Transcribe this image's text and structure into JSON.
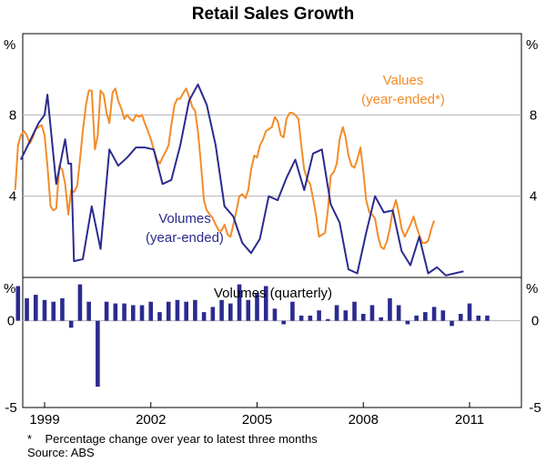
{
  "chart_data": {
    "title": "Retail Sales Growth",
    "footnote_marker": "*",
    "footnote": "Percentage change over year to latest three months",
    "source": "Source: ABS",
    "x_ticks": [
      "1999",
      "2002",
      "2005",
      "2008",
      "2011"
    ],
    "top_panel": {
      "type": "line",
      "unit": "%",
      "ylim": [
        0,
        12
      ],
      "y_ticks": [
        4,
        8
      ],
      "y_tick_labels": [
        "4",
        "8"
      ],
      "label_values": "Values",
      "label_values_sub": "(year-ended*)",
      "label_volumes": "Volumes",
      "label_volumes_sub": "(year-ended)",
      "series": [
        {
          "name": "Values",
          "color": "#F28C28",
          "points": [
            [
              1998.17,
              4.3
            ],
            [
              1998.25,
              6.5
            ],
            [
              1998.33,
              7.0
            ],
            [
              1998.42,
              7.2
            ],
            [
              1998.5,
              7.0
            ],
            [
              1998.58,
              6.6
            ],
            [
              1998.67,
              6.9
            ],
            [
              1998.75,
              7.3
            ],
            [
              1998.83,
              7.4
            ],
            [
              1998.92,
              7.5
            ],
            [
              1999.0,
              7.0
            ],
            [
              1999.08,
              5.5
            ],
            [
              1999.17,
              3.5
            ],
            [
              1999.25,
              3.3
            ],
            [
              1999.33,
              3.4
            ],
            [
              1999.42,
              5.5
            ],
            [
              1999.5,
              5.3
            ],
            [
              1999.58,
              4.6
            ],
            [
              1999.67,
              3.1
            ],
            [
              1999.75,
              4.3
            ],
            [
              1999.83,
              4.2
            ],
            [
              1999.92,
              4.5
            ],
            [
              2000.0,
              5.8
            ],
            [
              2000.08,
              7.2
            ],
            [
              2000.17,
              8.5
            ],
            [
              2000.25,
              9.2
            ],
            [
              2000.33,
              9.2
            ],
            [
              2000.42,
              6.3
            ],
            [
              2000.5,
              7.0
            ],
            [
              2000.58,
              9.2
            ],
            [
              2000.67,
              9.0
            ],
            [
              2000.75,
              8.1
            ],
            [
              2000.83,
              7.6
            ],
            [
              2000.92,
              9.1
            ],
            [
              2001.0,
              9.3
            ],
            [
              2001.08,
              8.7
            ],
            [
              2001.17,
              8.3
            ],
            [
              2001.25,
              7.8
            ],
            [
              2001.33,
              8.0
            ],
            [
              2001.42,
              7.8
            ],
            [
              2001.5,
              7.7
            ],
            [
              2001.58,
              8.0
            ],
            [
              2001.67,
              7.9
            ],
            [
              2001.75,
              8.0
            ],
            [
              2001.83,
              7.6
            ],
            [
              2001.92,
              7.2
            ],
            [
              2002.0,
              6.8
            ],
            [
              2002.08,
              6.3
            ],
            [
              2002.17,
              5.8
            ],
            [
              2002.25,
              5.6
            ],
            [
              2002.33,
              5.9
            ],
            [
              2002.42,
              6.2
            ],
            [
              2002.5,
              6.5
            ],
            [
              2002.58,
              7.5
            ],
            [
              2002.67,
              8.5
            ],
            [
              2002.75,
              8.8
            ],
            [
              2002.83,
              8.8
            ],
            [
              2002.92,
              9.1
            ],
            [
              2003.0,
              9.3
            ],
            [
              2003.08,
              8.9
            ],
            [
              2003.17,
              8.4
            ],
            [
              2003.25,
              8.2
            ],
            [
              2003.33,
              7.2
            ],
            [
              2003.42,
              5.5
            ],
            [
              2003.5,
              3.8
            ],
            [
              2003.58,
              3.3
            ],
            [
              2003.67,
              3.1
            ],
            [
              2003.75,
              2.9
            ],
            [
              2003.83,
              2.6
            ],
            [
              2003.92,
              2.3
            ],
            [
              2004.0,
              2.3
            ],
            [
              2004.08,
              2.6
            ],
            [
              2004.17,
              2.1
            ],
            [
              2004.25,
              2.0
            ],
            [
              2004.33,
              2.6
            ],
            [
              2004.42,
              3.3
            ],
            [
              2004.5,
              4.0
            ],
            [
              2004.58,
              4.1
            ],
            [
              2004.67,
              3.9
            ],
            [
              2004.75,
              4.3
            ],
            [
              2004.83,
              5.3
            ],
            [
              2004.92,
              6.0
            ],
            [
              2005.0,
              5.9
            ],
            [
              2005.08,
              6.5
            ],
            [
              2005.17,
              6.8
            ],
            [
              2005.25,
              7.2
            ],
            [
              2005.33,
              7.3
            ],
            [
              2005.42,
              7.4
            ],
            [
              2005.5,
              7.9
            ],
            [
              2005.58,
              7.7
            ],
            [
              2005.67,
              7.0
            ],
            [
              2005.75,
              6.9
            ],
            [
              2005.83,
              7.8
            ],
            [
              2005.92,
              8.1
            ],
            [
              2006.0,
              8.1
            ],
            [
              2006.08,
              8.0
            ],
            [
              2006.17,
              7.8
            ],
            [
              2006.25,
              6.5
            ],
            [
              2006.33,
              5.3
            ],
            [
              2006.42,
              4.8
            ],
            [
              2006.5,
              4.6
            ],
            [
              2006.58,
              3.9
            ],
            [
              2006.67,
              3.0
            ],
            [
              2006.75,
              2.0
            ],
            [
              2006.83,
              2.1
            ],
            [
              2006.92,
              2.2
            ],
            [
              2007.0,
              3.3
            ],
            [
              2007.08,
              5.0
            ],
            [
              2007.17,
              5.2
            ],
            [
              2007.25,
              5.6
            ],
            [
              2007.33,
              6.8
            ],
            [
              2007.42,
              7.4
            ],
            [
              2007.5,
              6.9
            ],
            [
              2007.58,
              6.0
            ],
            [
              2007.67,
              5.5
            ],
            [
              2007.75,
              5.4
            ],
            [
              2007.83,
              5.8
            ],
            [
              2007.92,
              6.4
            ],
            [
              2008.0,
              5.2
            ],
            [
              2008.08,
              3.8
            ],
            [
              2008.17,
              3.2
            ],
            [
              2008.25,
              3.1
            ],
            [
              2008.33,
              2.9
            ],
            [
              2008.42,
              2.0
            ],
            [
              2008.5,
              1.5
            ],
            [
              2008.58,
              1.4
            ],
            [
              2008.67,
              1.8
            ],
            [
              2008.75,
              2.4
            ],
            [
              2008.83,
              3.3
            ],
            [
              2008.92,
              3.8
            ],
            [
              2009.0,
              3.2
            ],
            [
              2009.08,
              2.4
            ],
            [
              2009.17,
              2.0
            ],
            [
              2009.25,
              2.3
            ],
            [
              2009.33,
              2.6
            ],
            [
              2009.42,
              3.0
            ],
            [
              2009.5,
              2.5
            ],
            [
              2009.58,
              2.1
            ],
            [
              2009.67,
              1.7
            ],
            [
              2009.75,
              1.7
            ],
            [
              2009.83,
              1.8
            ],
            [
              2009.92,
              2.4
            ],
            [
              2010.0,
              2.8
            ]
          ]
        },
        {
          "name": "Volumes",
          "color": "#2B2B8F",
          "points": [
            [
              1998.33,
              5.8
            ],
            [
              1998.58,
              6.7
            ],
            [
              1998.83,
              7.6
            ],
            [
              1999.0,
              8.0
            ],
            [
              1999.08,
              9.0
            ],
            [
              1999.33,
              4.6
            ],
            [
              1999.58,
              6.8
            ],
            [
              1999.67,
              5.6
            ],
            [
              1999.75,
              5.6
            ],
            [
              1999.83,
              0.8
            ],
            [
              2000.08,
              0.9
            ],
            [
              2000.33,
              3.5
            ],
            [
              2000.58,
              1.4
            ],
            [
              2000.83,
              6.3
            ],
            [
              2001.08,
              5.5
            ],
            [
              2001.33,
              5.9
            ],
            [
              2001.58,
              6.4
            ],
            [
              2001.83,
              6.4
            ],
            [
              2002.08,
              6.3
            ],
            [
              2002.33,
              4.6
            ],
            [
              2002.58,
              4.8
            ],
            [
              2002.83,
              6.5
            ],
            [
              2003.08,
              8.7
            ],
            [
              2003.33,
              9.5
            ],
            [
              2003.58,
              8.5
            ],
            [
              2003.83,
              6.5
            ],
            [
              2004.08,
              3.5
            ],
            [
              2004.33,
              3.0
            ],
            [
              2004.58,
              1.7
            ],
            [
              2004.83,
              1.2
            ],
            [
              2005.08,
              1.9
            ],
            [
              2005.33,
              4.0
            ],
            [
              2005.58,
              3.8
            ],
            [
              2005.83,
              4.9
            ],
            [
              2006.08,
              5.8
            ],
            [
              2006.33,
              4.3
            ],
            [
              2006.58,
              6.1
            ],
            [
              2006.83,
              6.3
            ],
            [
              2007.08,
              3.6
            ],
            [
              2007.33,
              2.7
            ],
            [
              2007.58,
              0.4
            ],
            [
              2007.83,
              0.2
            ],
            [
              2008.08,
              2.2
            ],
            [
              2008.33,
              4.0
            ],
            [
              2008.58,
              3.2
            ],
            [
              2008.83,
              3.3
            ],
            [
              2009.08,
              1.3
            ],
            [
              2009.33,
              0.6
            ],
            [
              2009.58,
              2.0
            ],
            [
              2009.83,
              0.2
            ],
            [
              2010.08,
              0.5
            ],
            [
              2010.33,
              0.1
            ],
            [
              2010.58,
              0.2
            ],
            [
              2010.83,
              0.3
            ]
          ]
        }
      ]
    },
    "bottom_panel": {
      "type": "bar",
      "unit": "%",
      "title": "Volumes (quarterly)",
      "ylim": [
        -5,
        2.5
      ],
      "y_ticks": [
        -5,
        0
      ],
      "y_tick_labels": [
        "-5",
        "0"
      ],
      "color": "#2B2B8F",
      "series": {
        "name": "Volumes (quarterly)",
        "x": [
          1998.25,
          1998.5,
          1998.75,
          1999.0,
          1999.25,
          1999.5,
          1999.75,
          2000.0,
          2000.25,
          2000.5,
          2000.75,
          2001.0,
          2001.25,
          2001.5,
          2001.75,
          2002.0,
          2002.25,
          2002.5,
          2002.75,
          2003.0,
          2003.25,
          2003.5,
          2003.75,
          2004.0,
          2004.25,
          2004.5,
          2004.75,
          2005.0,
          2005.25,
          2005.5,
          2005.75,
          2006.0,
          2006.25,
          2006.5,
          2006.75,
          2007.0,
          2007.25,
          2007.5,
          2007.75,
          2008.0,
          2008.25,
          2008.5,
          2008.75,
          2009.0,
          2009.25,
          2009.5,
          2009.75,
          2010.0,
          2010.25,
          2010.5,
          2010.75,
          2011.0,
          2011.25,
          2011.5
        ],
        "values": [
          2.0,
          1.3,
          1.5,
          1.2,
          1.1,
          1.3,
          -0.4,
          2.1,
          1.1,
          -3.8,
          1.1,
          1.0,
          1.0,
          0.9,
          0.9,
          1.1,
          0.5,
          1.1,
          1.2,
          1.1,
          1.2,
          0.5,
          0.8,
          1.2,
          1.0,
          2.1,
          1.2,
          1.6,
          2.0,
          0.7,
          -0.2,
          1.1,
          0.3,
          0.3,
          0.6,
          0.1,
          0.9,
          0.6,
          1.1,
          0.4,
          0.9,
          0.2,
          1.3,
          0.9,
          -0.2,
          0.3,
          0.5,
          0.8,
          0.6,
          -0.3,
          0.4,
          1.0,
          0.3,
          0.3
        ]
      }
    }
  }
}
